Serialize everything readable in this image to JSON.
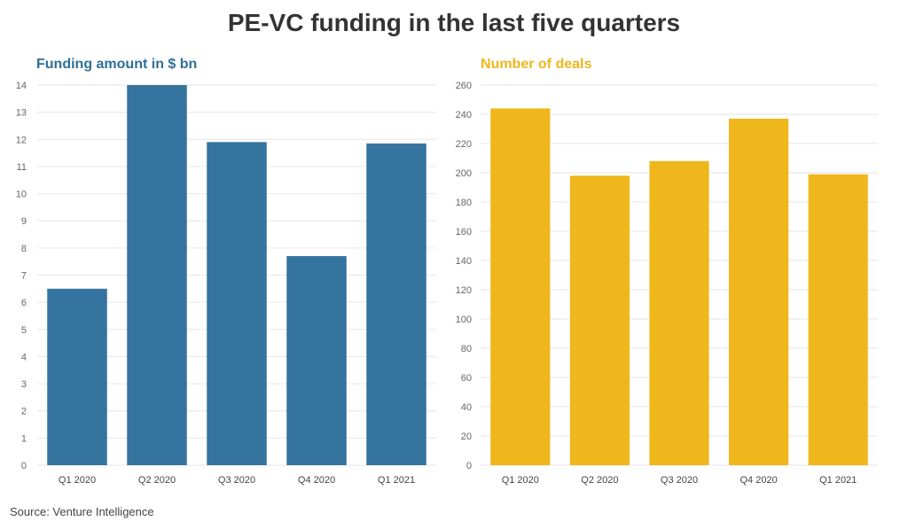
{
  "title": "PE-VC funding in the last five quarters",
  "source": "Source: Venture Intelligence",
  "chart_data": [
    {
      "type": "bar",
      "title": "Funding amount in $ bn",
      "categories": [
        "Q1 2020",
        "Q2 2020",
        "Q3 2020",
        "Q4 2020",
        "Q1 2021"
      ],
      "values": [
        6.5,
        14.0,
        11.9,
        7.7,
        11.85
      ],
      "ylim": [
        0,
        14
      ],
      "yticks": [
        0,
        1,
        2,
        3,
        4,
        5,
        6,
        7,
        8,
        9,
        10,
        11,
        12,
        13,
        14
      ],
      "color": "#35749e",
      "grid": true
    },
    {
      "type": "bar",
      "title": "Number of deals",
      "categories": [
        "Q1 2020",
        "Q2 2020",
        "Q3 2020",
        "Q4 2020",
        "Q1 2021"
      ],
      "values": [
        244,
        198,
        208,
        237,
        199
      ],
      "ylim": [
        0,
        260
      ],
      "yticks": [
        0,
        20,
        40,
        60,
        80,
        100,
        120,
        140,
        160,
        180,
        200,
        220,
        240,
        260
      ],
      "color": "#efb71c",
      "grid": true
    }
  ]
}
